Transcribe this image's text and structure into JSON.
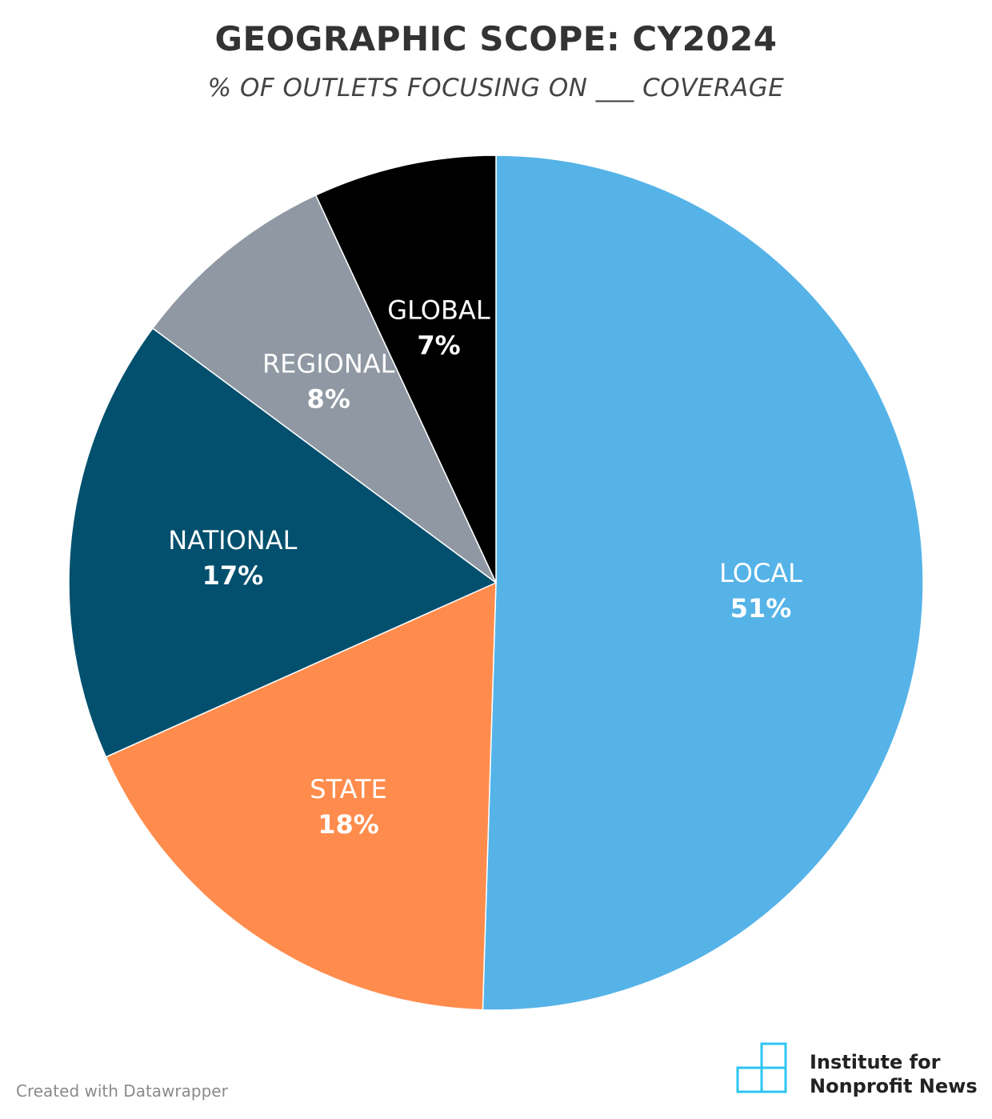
{
  "header": {
    "title": "GEOGRAPHIC SCOPE: CY2024",
    "subtitle": "% OF OUTLETS FOCUSING ON ___ COVERAGE"
  },
  "chart_data": {
    "type": "pie",
    "title": "GEOGRAPHIC SCOPE: CY2024",
    "subtitle": "% OF OUTLETS FOCUSING ON ___ COVERAGE",
    "slices": [
      {
        "label": "LOCAL",
        "value": 51,
        "value_label": "51%",
        "color": "#55b3e8"
      },
      {
        "label": "STATE",
        "value": 18,
        "value_label": "18%",
        "color": "#ff8c4d"
      },
      {
        "label": "NATIONAL",
        "value": 17,
        "value_label": "17%",
        "color": "#02506e"
      },
      {
        "label": "REGIONAL",
        "value": 8,
        "value_label": "8%",
        "color": "#8f98a3"
      },
      {
        "label": "GLOBAL",
        "value": 7,
        "value_label": "7%",
        "color": "#000000"
      }
    ]
  },
  "footer": {
    "credit": "Created with Datawrapper",
    "logo_line1": "Institute for",
    "logo_line2": "Nonprofit News",
    "logo_icon": "grid-logo-icon",
    "logo_color": "#2ec5f0"
  }
}
